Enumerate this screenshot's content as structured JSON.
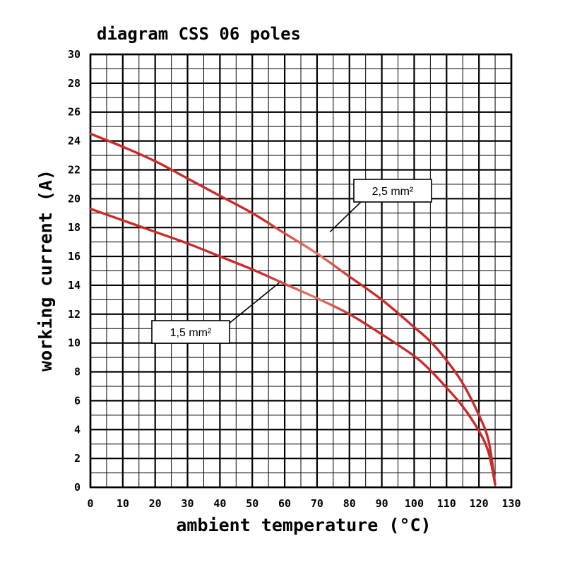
{
  "chart_data": {
    "type": "line",
    "title": "diagram CSS 06 poles",
    "xlabel": "ambient temperature (°C)",
    "ylabel": "working current (A)",
    "xlim": [
      0,
      130
    ],
    "ylim": [
      0,
      30
    ],
    "x_ticks": [
      "0",
      "10",
      "20",
      "30",
      "40",
      "50",
      "60",
      "70",
      "80",
      "90",
      "100",
      "110",
      "120",
      "130"
    ],
    "y_ticks": [
      "0",
      "2",
      "4",
      "6",
      "8",
      "10",
      "12",
      "14",
      "16",
      "18",
      "20",
      "22",
      "24",
      "26",
      "28",
      "30"
    ],
    "grid": true,
    "series": [
      {
        "name": "2,5 mm²",
        "color": "#cc2a2a",
        "x": [
          0,
          10,
          20,
          30,
          40,
          50,
          60,
          70,
          80,
          90,
          100,
          105,
          110,
          115,
          120,
          123,
          125
        ],
        "y": [
          24.5,
          23.6,
          22.6,
          21.4,
          20.2,
          19.0,
          17.6,
          16.2,
          14.6,
          13.0,
          11.1,
          10.1,
          8.8,
          7.2,
          5.0,
          3.2,
          0.2
        ]
      },
      {
        "name": "1,5 mm²",
        "color": "#cc2a2a",
        "x": [
          0,
          10,
          20,
          30,
          40,
          50,
          60,
          70,
          80,
          90,
          100,
          105,
          110,
          115,
          120,
          123,
          125
        ],
        "y": [
          19.3,
          18.5,
          17.7,
          16.9,
          16.0,
          15.1,
          14.1,
          13.1,
          12.0,
          10.6,
          9.1,
          8.1,
          6.9,
          5.6,
          3.9,
          2.4,
          0.2
        ]
      }
    ],
    "annotations": [
      {
        "text": "2,5 mm²",
        "series": "2,5 mm²"
      },
      {
        "text": "1,5 mm²",
        "series": "1,5 mm²"
      }
    ]
  }
}
